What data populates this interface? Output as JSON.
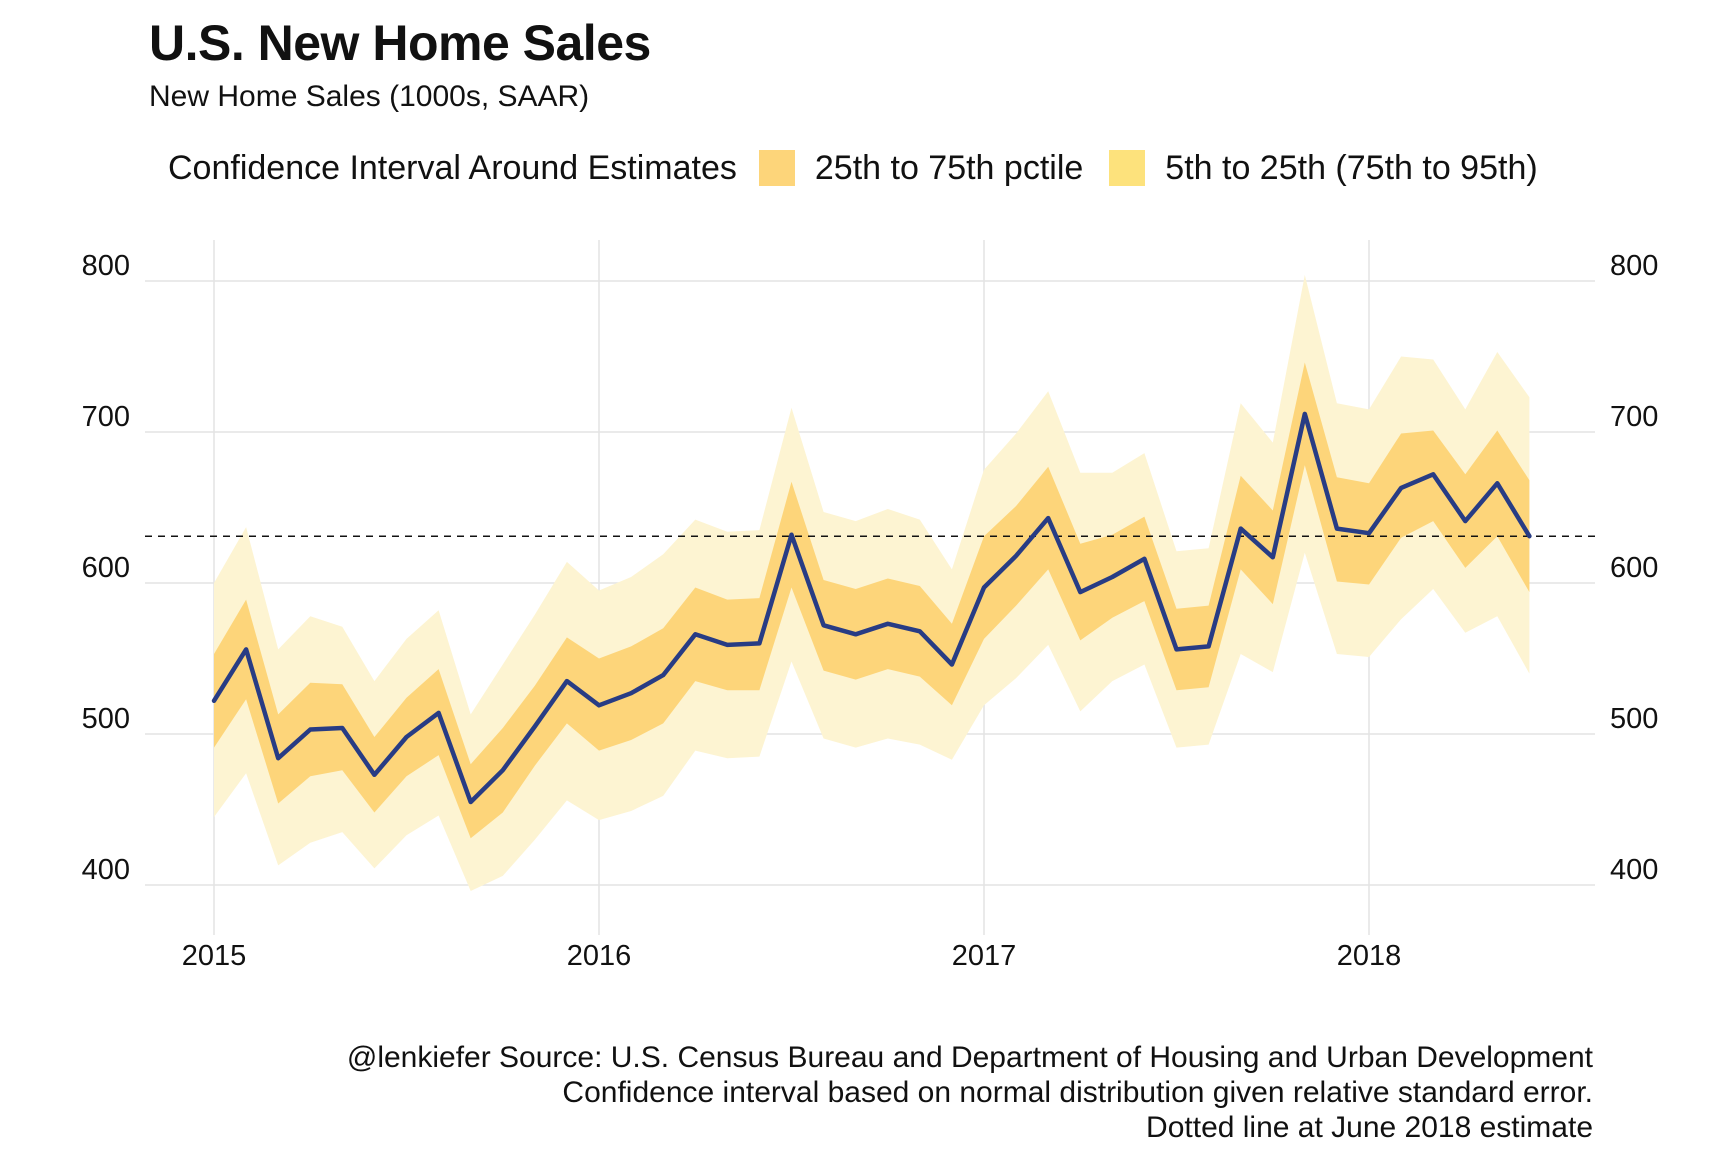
{
  "title": "U.S. New Home Sales",
  "subtitle": "New Home Sales (1000s, SAAR)",
  "legend": {
    "title": "Confidence Interval Around Estimates",
    "items": [
      {
        "label": "25th to 75th pctile",
        "color": "#fdd57a"
      },
      {
        "label": "5th to 25th (75th to 95th)",
        "color": "#fde27c"
      }
    ]
  },
  "caption": [
    "@lenkiefer Source: U.S. Census Bureau and Department of Housing and Urban Development",
    "Confidence interval based on normal distribution given relative standard error.",
    "Dotted line at June 2018 estimate"
  ],
  "chart_data": {
    "type": "line",
    "ylim": [
      390,
      815
    ],
    "y_ticks": [
      400,
      500,
      600,
      700,
      800
    ],
    "x_ticks": [
      "2015",
      "2016",
      "2017",
      "2018"
    ],
    "x_start_year": 2015,
    "reference_line": 631,
    "colors": {
      "line": "#283c84",
      "inner_band": "#fdd57a",
      "outer_band": "#fdf4d2",
      "grid": "#e3e3e3"
    },
    "series": [
      {
        "x": [
          "2015-01",
          "2015-02",
          "2015-03",
          "2015-04",
          "2015-05",
          "2015-06",
          "2015-07",
          "2015-08",
          "2015-09",
          "2015-10",
          "2015-11",
          "2015-12",
          "2016-01",
          "2016-02",
          "2016-03",
          "2016-04",
          "2016-05",
          "2016-06",
          "2016-07",
          "2016-08",
          "2016-09",
          "2016-10",
          "2016-11",
          "2016-12",
          "2017-01",
          "2017-02",
          "2017-03",
          "2017-04",
          "2017-05",
          "2017-06",
          "2017-07",
          "2017-08",
          "2017-09",
          "2017-10",
          "2017-11",
          "2017-12",
          "2018-01",
          "2018-02",
          "2018-03",
          "2018-04",
          "2018-05",
          "2018-06"
        ],
        "values": [
          522,
          556,
          484,
          503,
          504,
          473,
          498,
          514,
          455,
          476,
          505,
          535,
          519,
          527,
          539,
          566,
          559,
          560,
          632,
          572,
          566,
          573,
          568,
          546,
          597,
          618,
          643,
          594,
          604,
          616,
          556,
          558,
          636,
          617,
          712,
          636,
          633,
          663,
          672,
          641,
          666,
          631
        ],
        "p25": [
          491,
          523,
          454,
          472,
          476,
          448,
          472,
          486,
          431,
          448,
          479,
          507,
          489,
          496,
          507,
          535,
          529,
          529,
          597,
          542,
          536,
          543,
          538,
          519,
          563,
          585,
          609,
          562,
          577,
          588,
          529,
          531,
          609,
          586,
          678,
          601,
          599,
          630,
          641,
          610,
          631,
          594
        ],
        "p75": [
          553,
          589,
          513,
          534,
          533,
          498,
          524,
          543,
          480,
          504,
          532,
          564,
          550,
          558,
          570,
          597,
          589,
          590,
          667,
          602,
          596,
          603,
          598,
          573,
          631,
          651,
          677,
          626,
          632,
          644,
          583,
          585,
          671,
          648,
          746,
          670,
          666,
          699,
          701,
          672,
          701,
          668
        ],
        "p05": [
          445,
          474,
          413,
          428,
          435,
          411,
          433,
          446,
          396,
          406,
          430,
          456,
          443,
          449,
          459,
          489,
          484,
          485,
          548,
          497,
          491,
          497,
          493,
          483,
          519,
          537,
          559,
          515,
          535,
          546,
          491,
          493,
          553,
          541,
          620,
          553,
          551,
          576,
          596,
          567,
          578,
          540
        ],
        "p95": [
          600,
          637,
          556,
          578,
          571,
          535,
          563,
          582,
          513,
          546,
          579,
          614,
          595,
          604,
          619,
          642,
          634,
          635,
          716,
          647,
          641,
          649,
          642,
          609,
          675,
          699,
          727,
          673,
          673,
          686,
          621,
          623,
          719,
          693,
          804,
          719,
          715,
          750,
          748,
          715,
          753,
          723
        ]
      }
    ]
  }
}
